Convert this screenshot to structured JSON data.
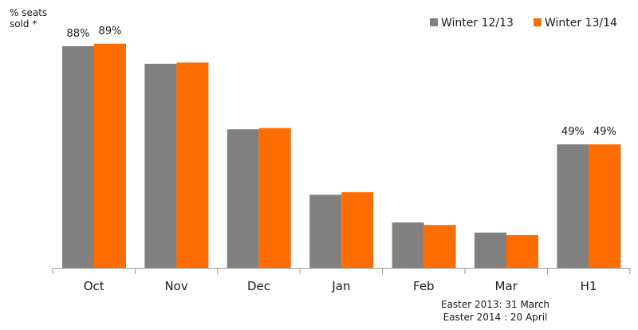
{
  "chart_data": {
    "type": "bar",
    "ylabel_lines": [
      "% seats",
      "sold *"
    ],
    "categories": [
      "Oct",
      "Nov",
      "Dec",
      "Jan",
      "Feb",
      "Mar",
      "H1"
    ],
    "series": [
      {
        "name": "Winter 12/13",
        "color": "#808080",
        "values": [
          88,
          81,
          55,
          29,
          18,
          14,
          49
        ]
      },
      {
        "name": "Winter 13/14",
        "color": "#ff6d00",
        "values": [
          89,
          81.5,
          55.5,
          30,
          17,
          13,
          49
        ]
      }
    ],
    "data_labels": [
      {
        "category": "Oct",
        "series": 0,
        "text": "88%"
      },
      {
        "category": "Oct",
        "series": 1,
        "text": "89%"
      },
      {
        "category": "H1",
        "series": 0,
        "text": "49%"
      },
      {
        "category": "H1",
        "series": 1,
        "text": "49%"
      }
    ],
    "ylim": [
      0,
      100
    ],
    "legend_position": "top-right",
    "footnote_lines": [
      "Easter 2013: 31 March",
      "Easter 2014 : 20 April"
    ],
    "grid": false
  }
}
